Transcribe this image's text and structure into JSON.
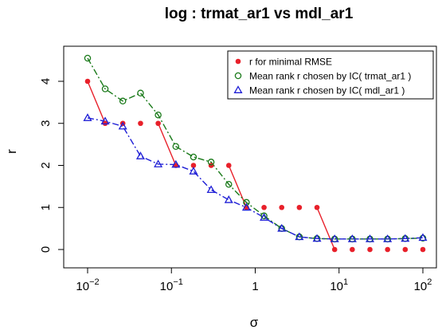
{
  "chart_data": {
    "type": "scatter",
    "title": "log :  trmat_ar1 vs mdl_ar1",
    "xlabel": "σ",
    "ylabel": "r",
    "xscale": "log",
    "xlim": [
      0.01,
      100
    ],
    "ylim": [
      0,
      4.6
    ],
    "x_ticks": [
      {
        "value": 0.01,
        "base": "10",
        "exp": "−2"
      },
      {
        "value": 0.1,
        "base": "10",
        "exp": "−1"
      },
      {
        "value": 1,
        "base": "1",
        "exp": ""
      },
      {
        "value": 10,
        "base": "10",
        "exp": "1"
      },
      {
        "value": 100,
        "base": "10",
        "exp": "2"
      }
    ],
    "y_ticks": [
      "0",
      "1",
      "2",
      "3",
      "4"
    ],
    "legend_position": "top-right",
    "x": [
      0.01,
      0.0162,
      0.0263,
      0.0428,
      0.0695,
      0.1129,
      0.1833,
      0.2976,
      0.4833,
      0.7848,
      1.2743,
      2.0691,
      3.3598,
      5.4556,
      8.8587,
      14.3845,
      23.3572,
      37.9269,
      61.5848,
      100
    ],
    "series": [
      {
        "name": "r for minimal RMSE",
        "marker": "dot",
        "color": "#e8202a",
        "values": [
          4,
          3,
          3,
          3,
          3,
          2,
          2,
          2,
          2,
          1,
          1,
          1,
          1,
          1,
          0,
          0,
          0,
          0,
          0,
          0
        ]
      },
      {
        "name": "Mean rank r chosen by IC( trmat_ar1 )",
        "marker": "circle",
        "color": "#1a7a1a",
        "values": [
          4.55,
          3.82,
          3.53,
          3.72,
          3.2,
          2.45,
          2.2,
          2.08,
          1.55,
          1.12,
          0.8,
          0.5,
          0.3,
          0.26,
          0.25,
          0.25,
          0.25,
          0.25,
          0.26,
          0.27
        ]
      },
      {
        "name": "Mean rank r chosen by IC( mdl_ar1 )",
        "marker": "triangle",
        "color": "#1f1fd6",
        "values": [
          3.13,
          3.05,
          2.93,
          2.22,
          2.03,
          2.02,
          1.86,
          1.42,
          1.18,
          1.0,
          0.76,
          0.5,
          0.3,
          0.26,
          0.25,
          0.25,
          0.25,
          0.25,
          0.26,
          0.28
        ]
      }
    ]
  }
}
